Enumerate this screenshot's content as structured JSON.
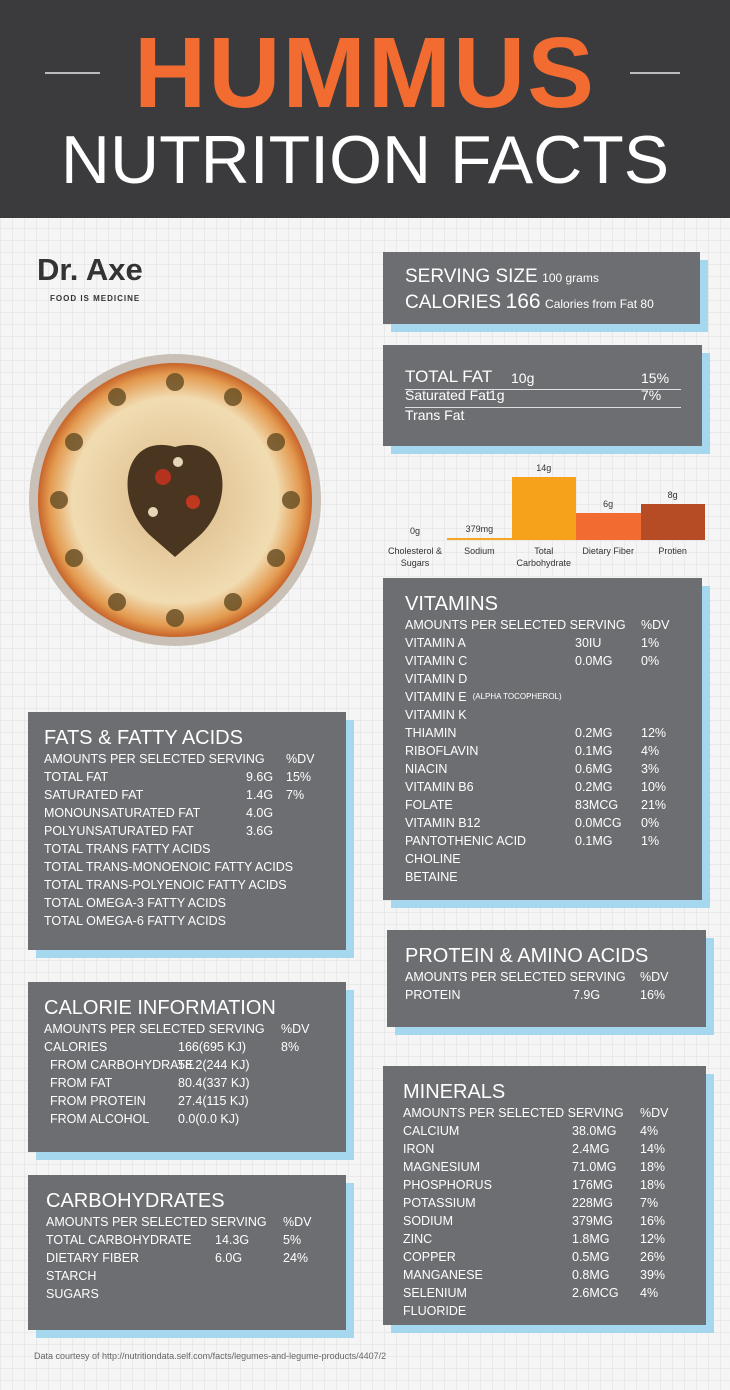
{
  "header": {
    "title": "HUMMUS",
    "subtitle": "NUTRITION FACTS"
  },
  "brand": {
    "name": "Dr. Axe",
    "tagline": "FOOD IS MEDICINE"
  },
  "serving": {
    "size_label": "SERVING SIZE",
    "size": "100 grams",
    "calories_label": "CALORIES",
    "calories": "166",
    "calories_from_fat": "Calories from Fat 80"
  },
  "total_fat": {
    "rows": [
      {
        "name": "TOTAL FAT",
        "amount": "10g",
        "dv": "15%"
      },
      {
        "name": "Saturated Fat",
        "amount": "1g",
        "dv": "7%"
      },
      {
        "name": "Trans Fat"
      }
    ]
  },
  "chart_data": {
    "type": "bar",
    "categories": [
      "Cholesterol & Sugars",
      "Sodium",
      "Total Carbohydrate",
      "Dietary Fiber",
      "Protien"
    ],
    "values": [
      0,
      0.379,
      14,
      6,
      8
    ],
    "value_labels": [
      "0g",
      "379mg",
      "14g",
      "6g",
      "8g"
    ],
    "colors": [
      "#f5a623",
      "#f5a623",
      "#f7a21b",
      "#f26c32",
      "#b54c25"
    ]
  },
  "vitamins": {
    "title": "VITAMINS",
    "header": "AMOUNTS PER SELECTED SERVING",
    "dv_header": "%DV",
    "rows": [
      {
        "name": "VITAMIN A",
        "amount": "30IU",
        "dv": "1%"
      },
      {
        "name": "VITAMIN C",
        "amount": "0.0MG",
        "dv": "0%"
      },
      {
        "name": "VITAMIN D"
      },
      {
        "name": "VITAMIN E",
        "note": "(ALPHA TOCOPHEROL)"
      },
      {
        "name": "VITAMIN K"
      },
      {
        "name": "THIAMIN",
        "amount": "0.2MG",
        "dv": "12%"
      },
      {
        "name": "RIBOFLAVIN",
        "amount": "0.1MG",
        "dv": "4%"
      },
      {
        "name": "NIACIN",
        "amount": "0.6MG",
        "dv": "3%"
      },
      {
        "name": "VITAMIN B6",
        "amount": "0.2MG",
        "dv": "10%"
      },
      {
        "name": "FOLATE",
        "amount": "83MCG",
        "dv": "21%"
      },
      {
        "name": "VITAMIN B12",
        "amount": "0.0MCG",
        "dv": "0%"
      },
      {
        "name": "PANTOTHENIC ACID",
        "amount": "0.1MG",
        "dv": "1%"
      },
      {
        "name": "CHOLINE"
      },
      {
        "name": "BETAINE"
      }
    ]
  },
  "fats": {
    "title": "FATS & FATTY ACIDS",
    "header": "AMOUNTS PER SELECTED SERVING",
    "dv_header": "%DV",
    "rows": [
      {
        "name": "TOTAL FAT",
        "amount": "9.6G",
        "dv": "15%"
      },
      {
        "name": "SATURATED FAT",
        "amount": "1.4G",
        "dv": "7%"
      },
      {
        "name": "MONOUNSATURATED FAT",
        "amount": "4.0G"
      },
      {
        "name": "POLYUNSATURATED FAT",
        "amount": "3.6G"
      },
      {
        "name": "TOTAL TRANS FATTY ACIDS"
      },
      {
        "name": "TOTAL TRANS-MONOENOIC FATTY ACIDS"
      },
      {
        "name": "TOTAL TRANS-POLYENOIC FATTY ACIDS"
      },
      {
        "name": "TOTAL OMEGA-3 FATTY ACIDS"
      },
      {
        "name": "TOTAL OMEGA-6 FATTY ACIDS"
      }
    ]
  },
  "protein": {
    "title": "PROTEIN & AMINO ACIDS",
    "header": "AMOUNTS PER SELECTED SERVING",
    "dv_header": "%DV",
    "rows": [
      {
        "name": "PROTEIN",
        "amount": "7.9G",
        "dv": "16%"
      }
    ]
  },
  "calorie_info": {
    "title": "CALORIE INFORMATION",
    "header": "AMOUNTS PER SELECTED SERVING",
    "dv_header": "%DV",
    "rows": [
      {
        "name": "CALORIES",
        "amount": "166(695 KJ)",
        "dv": "8%"
      },
      {
        "name": "FROM CARBOHYDRATE",
        "amount": "58.2(244 KJ)"
      },
      {
        "name": "FROM FAT",
        "amount": "80.4(337 KJ)"
      },
      {
        "name": "FROM PROTEIN",
        "amount": "27.4(115 KJ)"
      },
      {
        "name": "FROM ALCOHOL",
        "amount": "0.0(0.0 KJ)"
      }
    ]
  },
  "minerals": {
    "title": "MINERALS",
    "header": "AMOUNTS PER SELECTED SERVING",
    "dv_header": "%DV",
    "rows": [
      {
        "name": "CALCIUM",
        "amount": "38.0MG",
        "dv": "4%"
      },
      {
        "name": "IRON",
        "amount": "2.4MG",
        "dv": "14%"
      },
      {
        "name": "MAGNESIUM",
        "amount": "71.0MG",
        "dv": "18%"
      },
      {
        "name": "PHOSPHORUS",
        "amount": "176MG",
        "dv": "18%"
      },
      {
        "name": "POTASSIUM",
        "amount": "228MG",
        "dv": "7%"
      },
      {
        "name": "SODIUM",
        "amount": "379MG",
        "dv": "16%"
      },
      {
        "name": "ZINC",
        "amount": "1.8MG",
        "dv": "12%"
      },
      {
        "name": "COPPER",
        "amount": "0.5MG",
        "dv": "26%"
      },
      {
        "name": "MANGANESE",
        "amount": "0.8MG",
        "dv": "39%"
      },
      {
        "name": "SELENIUM",
        "amount": "2.6MCG",
        "dv": "4%"
      },
      {
        "name": "FLUORIDE"
      }
    ]
  },
  "carbohydrates": {
    "title": "CARBOHYDRATES",
    "header": "AMOUNTS PER SELECTED SERVING",
    "dv_header": "%DV",
    "rows": [
      {
        "name": "TOTAL CARBOHYDRATE",
        "amount": "14.3G",
        "dv": "5%"
      },
      {
        "name": "DIETARY FIBER",
        "amount": "6.0G",
        "dv": "24%"
      },
      {
        "name": "STARCH"
      },
      {
        "name": "SUGARS"
      }
    ]
  },
  "footer": "Data courtesy of http://nutritiondata.self.com/facts/legumes-and-legume-products/4407/2"
}
